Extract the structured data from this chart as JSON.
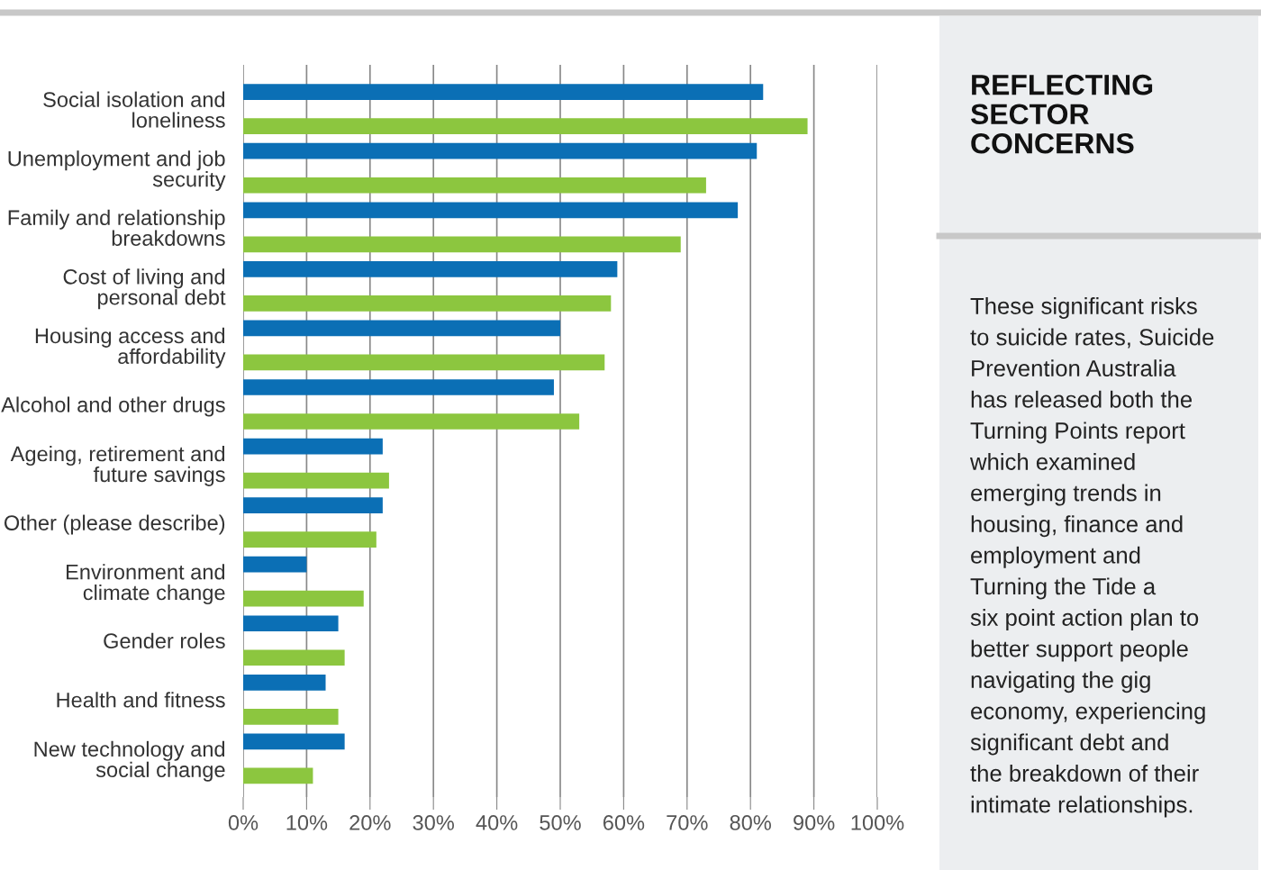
{
  "chart_data": [
    {
      "type": "bar",
      "orientation": "horizontal",
      "grid": "x",
      "categories": [
        "Social isolation and\nloneliness",
        "Unemployment and job\nsecurity",
        "Family and relationship\nbreakdowns",
        "Cost of living and\npersonal debt",
        "Housing access and\naffordability",
        "Alcohol and other drugs",
        "Ageing, retirement and\nfuture savings",
        "Other (please describe)",
        "Environment and\nclimate change",
        "Gender roles",
        "Health and fitness",
        "New technology and\nsocial change"
      ],
      "series": [
        {
          "color": "#0b6fb5",
          "values": [
            82,
            81,
            78,
            59,
            50,
            49,
            22,
            22,
            10,
            15,
            13,
            16
          ]
        },
        {
          "color": "#8cc63f",
          "values": [
            89,
            73,
            69,
            58,
            57,
            53,
            23,
            21,
            19,
            16,
            15,
            11
          ]
        }
      ],
      "xlim": [
        0,
        100
      ],
      "xticks": [
        {
          "value": 0,
          "label": "0%"
        },
        {
          "value": 10,
          "label": "10%"
        },
        {
          "value": 20,
          "label": "20%"
        },
        {
          "value": 30,
          "label": "30%"
        },
        {
          "value": 40,
          "label": "40%"
        },
        {
          "value": 50,
          "label": "50%"
        },
        {
          "value": 60,
          "label": "60%"
        },
        {
          "value": 70,
          "label": "70%"
        },
        {
          "value": 80,
          "label": "80%"
        },
        {
          "value": 90,
          "label": "90%"
        },
        {
          "value": 100,
          "label": "100%"
        }
      ]
    },
    {
      "type": "other",
      "title": "REFLECTING\nSECTOR\nCONCERNS",
      "annotations": [
        "These significant risks",
        "to suicide rates, Suicide",
        "Prevention Australia",
        "has released both the",
        "Turning Points report",
        "which examined",
        "emerging trends in",
        "housing, finance and",
        "employment and",
        "Turning the Tide a",
        "six point action plan to",
        "better support people",
        "navigating the gig",
        "economy, experiencing",
        "significant debt and",
        "the breakdown of their",
        "intimate relationships."
      ]
    }
  ]
}
